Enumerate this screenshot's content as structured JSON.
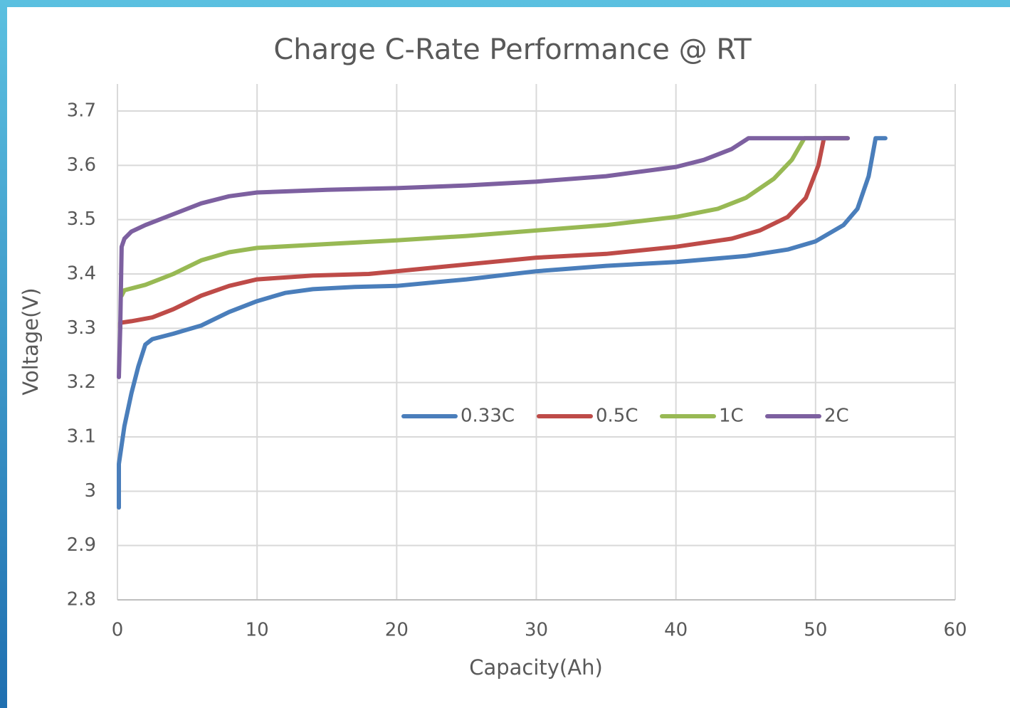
{
  "chart_data": {
    "type": "line",
    "title": "Charge C-Rate Performance  @ RT",
    "xlabel": "Capacity(Ah)",
    "ylabel": "Voltage(V)",
    "xlim": [
      0,
      60
    ],
    "xticks": [
      0,
      10,
      20,
      30,
      40,
      50,
      60
    ],
    "ylim": [
      2.8,
      3.7
    ],
    "yticks": [
      2.8,
      2.9,
      3,
      3.1,
      3.2,
      3.3,
      3.4,
      3.5,
      3.6,
      3.7
    ],
    "grid": true,
    "legend": "center",
    "series": [
      {
        "name": "0.33C",
        "color": "#4a7ebb",
        "x": [
          0.1,
          0.1,
          0.5,
          1,
          1.5,
          2,
          2.5,
          4,
          6,
          8,
          10,
          12,
          14,
          17,
          20,
          25,
          30,
          35,
          40,
          45,
          48,
          50,
          52,
          53,
          53.8,
          54.3,
          55
        ],
        "values": [
          2.97,
          3.05,
          3.12,
          3.18,
          3.23,
          3.27,
          3.28,
          3.29,
          3.305,
          3.33,
          3.35,
          3.365,
          3.372,
          3.376,
          3.378,
          3.39,
          3.405,
          3.415,
          3.422,
          3.433,
          3.445,
          3.46,
          3.49,
          3.52,
          3.58,
          3.65,
          3.65
        ]
      },
      {
        "name": "0.5C",
        "color": "#be4b48",
        "x": [
          0.2,
          0.2,
          1,
          2.5,
          4,
          6,
          8,
          10,
          14,
          18,
          22,
          26,
          30,
          35,
          40,
          44,
          46,
          48,
          49.3,
          50.2,
          50.6,
          52.3
        ],
        "values": [
          3.3,
          3.31,
          3.313,
          3.32,
          3.335,
          3.36,
          3.378,
          3.39,
          3.397,
          3.4,
          3.41,
          3.42,
          3.43,
          3.437,
          3.45,
          3.465,
          3.48,
          3.505,
          3.54,
          3.6,
          3.65,
          3.65
        ]
      },
      {
        "name": "1C",
        "color": "#98b954",
        "x": [
          0.3,
          0.5,
          2,
          4,
          6,
          8,
          10,
          15,
          20,
          25,
          30,
          35,
          40,
          43,
          45,
          47,
          48.3,
          49.2,
          52.3
        ],
        "values": [
          3.36,
          3.37,
          3.38,
          3.4,
          3.425,
          3.44,
          3.448,
          3.455,
          3.462,
          3.47,
          3.48,
          3.49,
          3.505,
          3.52,
          3.54,
          3.575,
          3.61,
          3.65,
          3.65
        ]
      },
      {
        "name": "2C",
        "color": "#7d60a0",
        "x": [
          0.1,
          0.2,
          0.3,
          0.5,
          1,
          2,
          4,
          6,
          8,
          10,
          15,
          20,
          25,
          30,
          35,
          40,
          42,
          44,
          45.2,
          52.3
        ],
        "values": [
          3.21,
          3.3,
          3.45,
          3.465,
          3.478,
          3.49,
          3.51,
          3.53,
          3.543,
          3.55,
          3.555,
          3.558,
          3.563,
          3.57,
          3.58,
          3.597,
          3.61,
          3.63,
          3.65,
          3.65
        ]
      }
    ]
  }
}
